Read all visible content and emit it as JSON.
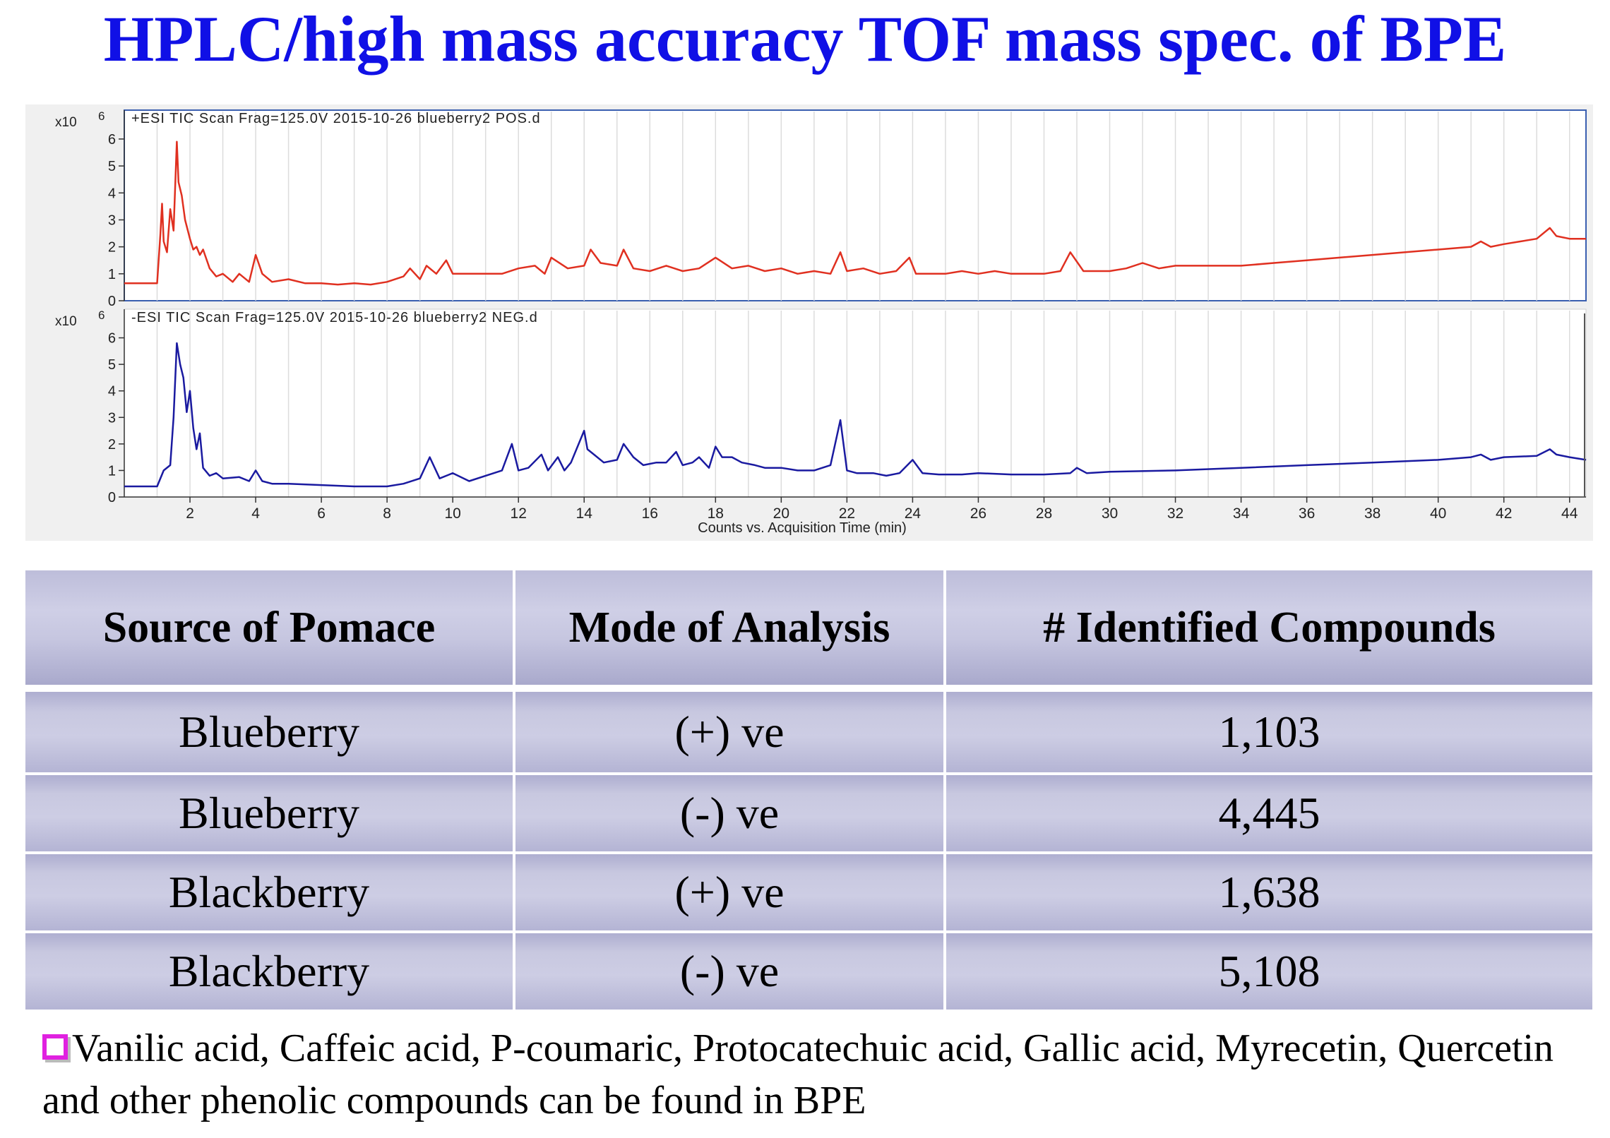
{
  "title": "HPLC/high mass accuracy TOF mass spec. of BPE",
  "chart_data": [
    {
      "type": "line",
      "title": "+ESI TIC Scan Frag=125.0V 2015-10-26 blueberry2 POS.d",
      "exponent_label": "x10",
      "exponent": "6",
      "xlabel": "Counts vs. Acquisition Time (min)",
      "xlim": [
        0,
        44.5
      ],
      "ylim": [
        0,
        6.6
      ],
      "yticks": [
        "0",
        "1",
        "2",
        "3",
        "4",
        "5",
        "6"
      ],
      "xticks": [
        "2",
        "4",
        "6",
        "8",
        "10",
        "12",
        "14",
        "16",
        "18",
        "20",
        "22",
        "24",
        "26",
        "28",
        "30",
        "32",
        "34",
        "36",
        "38",
        "40",
        "42",
        "44"
      ],
      "color": "#e03020",
      "series": [
        {
          "x": [
            0,
            1,
            1.1,
            1.15,
            1.2,
            1.3,
            1.4,
            1.5,
            1.6,
            1.65,
            1.75,
            1.85,
            2.0,
            2.1,
            2.2,
            2.3,
            2.4,
            2.6,
            2.8,
            3.0,
            3.3,
            3.5,
            3.8,
            4.0,
            4.2,
            4.5,
            5.0,
            5.5,
            6.0,
            6.5,
            7.0,
            7.5,
            8.0,
            8.5,
            8.7,
            9.0,
            9.2,
            9.5,
            9.8,
            10.0,
            10.5,
            11.0,
            11.5,
            12.0,
            12.5,
            12.8,
            13.0,
            13.5,
            14.0,
            14.2,
            14.5,
            15.0,
            15.2,
            15.5,
            16.0,
            16.5,
            17.0,
            17.5,
            18.0,
            18.5,
            19.0,
            19.5,
            20.0,
            20.5,
            21.0,
            21.5,
            21.8,
            22.0,
            22.5,
            23.0,
            23.5,
            23.9,
            24.1,
            24.5,
            25.0,
            25.5,
            26.0,
            26.5,
            27.0,
            27.5,
            28.0,
            28.5,
            28.8,
            29.2,
            29.5,
            30.0,
            30.5,
            31.0,
            31.5,
            32.0,
            33.0,
            34.0,
            35.0,
            36.0,
            37.0,
            38.0,
            39.0,
            40.0,
            41.0,
            41.3,
            41.6,
            42.0,
            42.5,
            43.0,
            43.4,
            43.6,
            44.0,
            44.5
          ],
          "y": [
            0.65,
            0.65,
            2.5,
            3.6,
            2.2,
            1.8,
            3.4,
            2.6,
            5.9,
            4.4,
            3.9,
            3.0,
            2.3,
            1.9,
            2.0,
            1.7,
            1.9,
            1.2,
            0.9,
            1.0,
            0.7,
            1.0,
            0.7,
            1.7,
            1.0,
            0.7,
            0.8,
            0.65,
            0.65,
            0.6,
            0.65,
            0.6,
            0.7,
            0.9,
            1.2,
            0.8,
            1.3,
            1.0,
            1.5,
            1.0,
            1.0,
            1.0,
            1.0,
            1.2,
            1.3,
            1.0,
            1.6,
            1.2,
            1.3,
            1.9,
            1.4,
            1.3,
            1.9,
            1.2,
            1.1,
            1.3,
            1.1,
            1.2,
            1.6,
            1.2,
            1.3,
            1.1,
            1.2,
            1.0,
            1.1,
            1.0,
            1.8,
            1.1,
            1.2,
            1.0,
            1.1,
            1.6,
            1.0,
            1.0,
            1.0,
            1.1,
            1.0,
            1.1,
            1.0,
            1.0,
            1.0,
            1.1,
            1.8,
            1.1,
            1.1,
            1.1,
            1.2,
            1.4,
            1.2,
            1.3,
            1.3,
            1.3,
            1.4,
            1.5,
            1.6,
            1.7,
            1.8,
            1.9,
            2.0,
            2.2,
            2.0,
            2.1,
            2.2,
            2.3,
            2.7,
            2.4,
            2.3,
            2.3
          ]
        }
      ]
    },
    {
      "type": "line",
      "title": "-ESI TIC Scan Frag=125.0V 2015-10-26 blueberry2 NEG.d",
      "exponent_label": "x10",
      "exponent": "6",
      "xlabel": "Counts vs. Acquisition Time (min)",
      "xlim": [
        0,
        44.5
      ],
      "ylim": [
        0,
        6.6
      ],
      "yticks": [
        "0",
        "1",
        "2",
        "3",
        "4",
        "5",
        "6"
      ],
      "xticks": [
        "2",
        "4",
        "6",
        "8",
        "10",
        "12",
        "14",
        "16",
        "18",
        "20",
        "22",
        "24",
        "26",
        "28",
        "30",
        "32",
        "34",
        "36",
        "38",
        "40",
        "42",
        "44"
      ],
      "color": "#1a1aa0",
      "series": [
        {
          "x": [
            0,
            1.0,
            1.2,
            1.4,
            1.5,
            1.6,
            1.7,
            1.8,
            1.9,
            2.0,
            2.1,
            2.2,
            2.3,
            2.4,
            2.6,
            2.8,
            3.0,
            3.5,
            3.8,
            4.0,
            4.2,
            4.5,
            5.0,
            6.0,
            7.0,
            8.0,
            8.5,
            9.0,
            9.3,
            9.6,
            10.0,
            10.5,
            11.0,
            11.5,
            11.8,
            12.0,
            12.3,
            12.7,
            12.9,
            13.2,
            13.4,
            13.6,
            14.0,
            14.1,
            14.3,
            14.6,
            15.0,
            15.2,
            15.5,
            15.8,
            16.2,
            16.5,
            16.8,
            17.0,
            17.3,
            17.5,
            17.8,
            18.0,
            18.2,
            18.5,
            18.8,
            19.2,
            19.5,
            20.0,
            20.5,
            21.0,
            21.5,
            21.8,
            22.0,
            22.3,
            22.8,
            23.2,
            23.6,
            24.0,
            24.3,
            24.8,
            25.5,
            26.0,
            27.0,
            28.0,
            28.8,
            29.0,
            29.3,
            30.0,
            32.0,
            34.0,
            36.0,
            38.0,
            40.0,
            41.0,
            41.3,
            41.6,
            42.0,
            43.0,
            43.4,
            43.6,
            44.0,
            44.5
          ],
          "y": [
            0.4,
            0.4,
            1.0,
            1.2,
            3.0,
            5.8,
            5.0,
            4.5,
            3.2,
            4.0,
            2.6,
            1.8,
            2.4,
            1.1,
            0.8,
            0.9,
            0.7,
            0.75,
            0.6,
            1.0,
            0.6,
            0.5,
            0.5,
            0.45,
            0.4,
            0.4,
            0.5,
            0.7,
            1.5,
            0.7,
            0.9,
            0.6,
            0.8,
            1.0,
            2.0,
            1.0,
            1.1,
            1.6,
            1.0,
            1.5,
            1.0,
            1.3,
            2.5,
            1.8,
            1.6,
            1.3,
            1.4,
            2.0,
            1.5,
            1.2,
            1.3,
            1.3,
            1.7,
            1.2,
            1.3,
            1.5,
            1.1,
            1.9,
            1.5,
            1.5,
            1.3,
            1.2,
            1.1,
            1.1,
            1.0,
            1.0,
            1.2,
            2.9,
            1.0,
            0.9,
            0.9,
            0.8,
            0.9,
            1.4,
            0.9,
            0.85,
            0.85,
            0.9,
            0.85,
            0.85,
            0.9,
            1.1,
            0.9,
            0.95,
            1.0,
            1.1,
            1.2,
            1.3,
            1.4,
            1.5,
            1.6,
            1.4,
            1.5,
            1.55,
            1.8,
            1.6,
            1.5,
            1.4
          ]
        }
      ]
    }
  ],
  "table": {
    "headers": [
      "Source of Pomace",
      "Mode of Analysis",
      "# Identified Compounds"
    ],
    "rows": [
      [
        "Blueberry",
        "(+) ve",
        "1,103"
      ],
      [
        "Blueberry",
        "(-) ve",
        "4,445"
      ],
      [
        "Blackberry",
        "(+) ve",
        "1,638"
      ],
      [
        "Blackberry",
        "(-) ve",
        "5,108"
      ]
    ]
  },
  "note": "Vanilic acid, Caffeic acid, P-coumaric, Protocatechuic acid, Gallic acid, Myrecetin, Quercetin and other phenolic compounds can be found in BPE"
}
